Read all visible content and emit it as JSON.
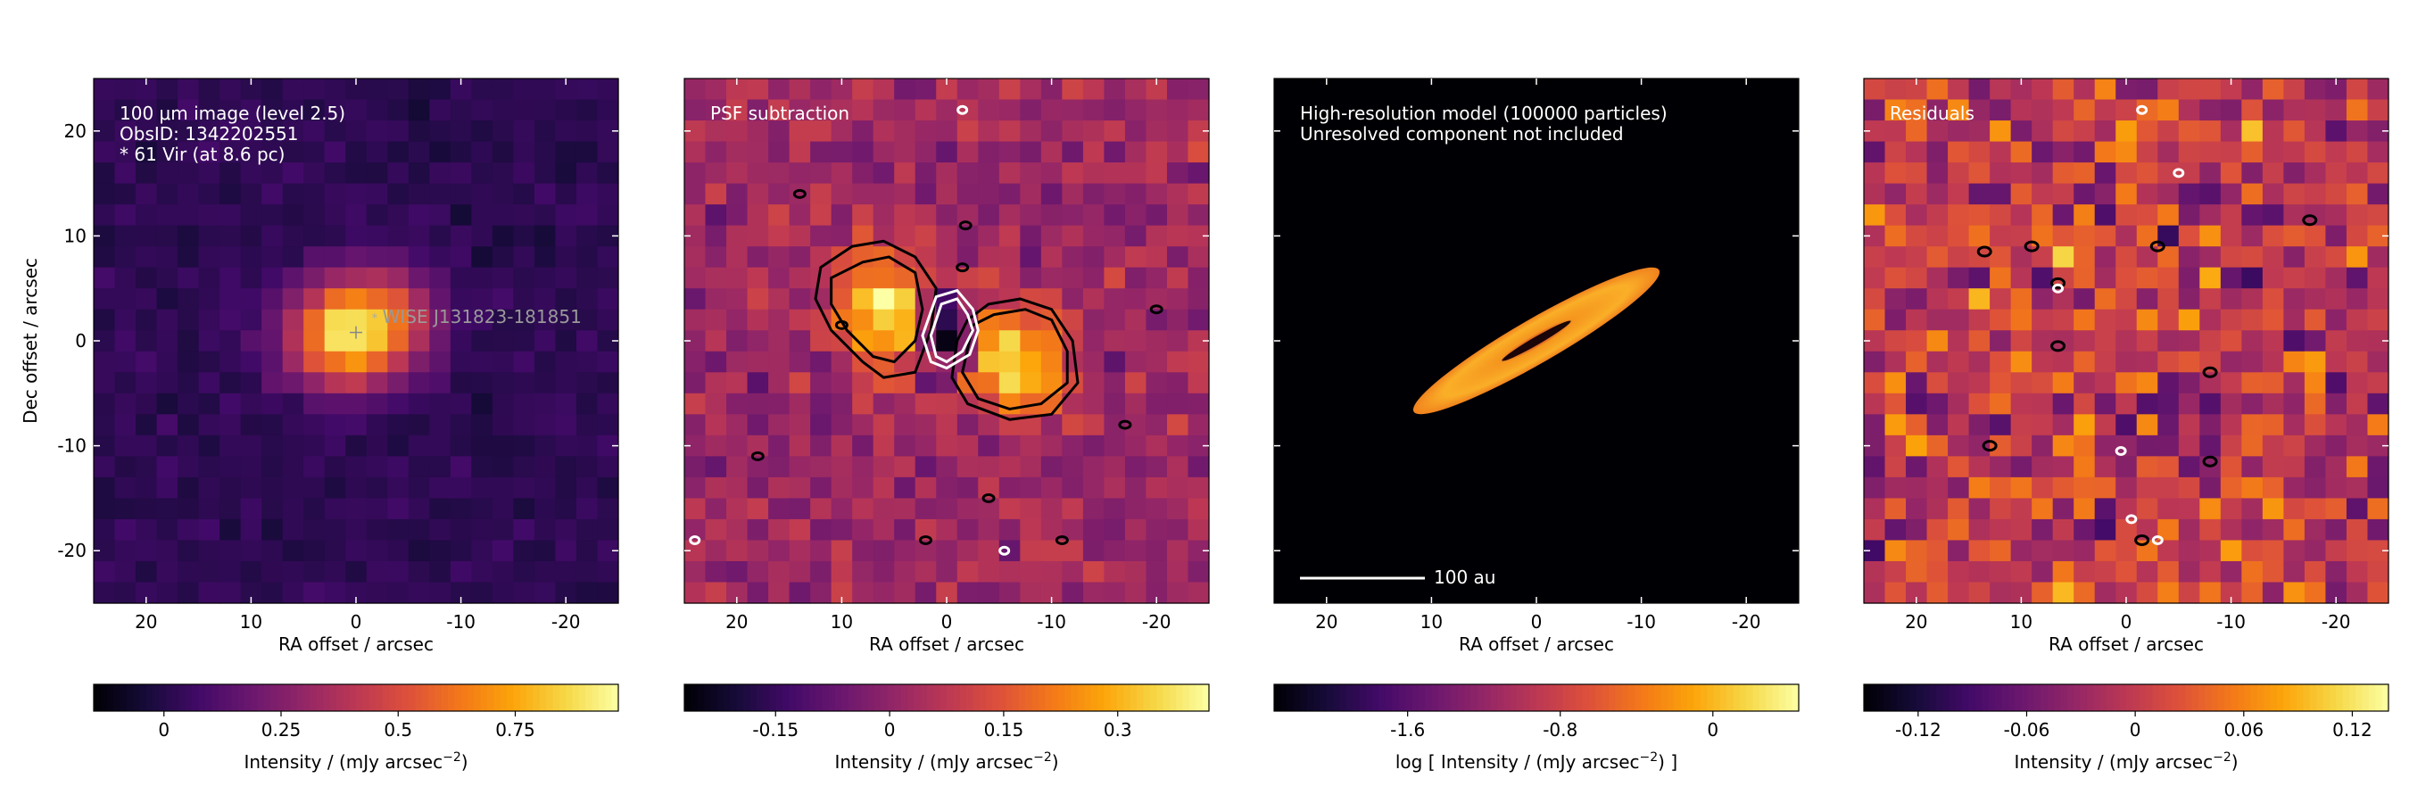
{
  "chart_data": [
    {
      "type": "heatmap",
      "panel": "observed image",
      "annotations": [
        "100 μm image (level 2.5)",
        "ObsID: 1342202551",
        "* 61 Vir (at 8.6 pc)"
      ],
      "source_label": "WISE J131823-181851",
      "xlabel": "RA offset / arcsec",
      "ylabel": "Dec offset / arcsec",
      "xlim": [
        25,
        -25
      ],
      "ylim": [
        -25,
        25
      ],
      "xticks": [
        20,
        10,
        0,
        -10,
        -20
      ],
      "yticks": [
        20,
        10,
        0,
        -10,
        -20
      ],
      "colorbar": {
        "label": "Intensity / (mJy arcsec",
        "label_sup": "−2",
        "label_end": ")",
        "range": [
          -0.15,
          0.97
        ],
        "ticks": [
          "0",
          "0.25",
          "0.5",
          "0.75"
        ],
        "tick_values": [
          0,
          0.25,
          0.5,
          0.75
        ]
      },
      "colormap": "inferno",
      "source": {
        "ra": 0,
        "dec": 1,
        "peak": 0.95,
        "width_ra": 4.5,
        "width_dec": 3.5,
        "pa_deg": -15
      }
    },
    {
      "type": "heatmap",
      "panel": "psf subtraction",
      "annotations": [
        "PSF subtraction"
      ],
      "xlabel": "RA offset / arcsec",
      "xlim": [
        25,
        -25
      ],
      "ylim": [
        -25,
        25
      ],
      "xticks": [
        20,
        10,
        0,
        -10,
        -20
      ],
      "colorbar": {
        "label": "Intensity / (mJy arcsec",
        "label_sup": "−2",
        "label_end": ")",
        "range": [
          -0.27,
          0.42
        ],
        "ticks": [
          "-0.15",
          "0",
          "0.15",
          "0.3"
        ],
        "tick_values": [
          -0.15,
          0,
          0.15,
          0.3
        ]
      },
      "colormap": "inferno",
      "lobes": [
        {
          "ra": 6,
          "dec": 3,
          "peak": 0.38,
          "width_ra": 2.8,
          "width_dec": 4.0
        },
        {
          "ra": -7,
          "dec": -2,
          "peak": 0.36,
          "width_ra": 3.2,
          "width_dec": 3.2
        },
        {
          "ra": 0,
          "dec": 1,
          "peak": -0.27,
          "width_ra": 1.6,
          "width_dec": 2.4
        }
      ]
    },
    {
      "type": "heatmap",
      "panel": "model",
      "annotations": [
        "High-resolution model (100000 particles)",
        "Unresolved component not included"
      ],
      "scalebar_label": "100 au",
      "xlabel": "RA offset / arcsec",
      "xlim": [
        25,
        -25
      ],
      "ylim": [
        -25,
        25
      ],
      "xticks": [
        20,
        10,
        0,
        -10,
        -20
      ],
      "colorbar": {
        "label": "log [ Intensity / (mJy arcsec",
        "label_sup": "−2",
        "label_end": ") ]",
        "range": [
          -2.3,
          0.45
        ],
        "ticks": [
          "-1.6",
          "-0.8",
          "0"
        ],
        "tick_values": [
          -1.6,
          -0.8,
          0
        ]
      },
      "colormap": "inferno",
      "disk": {
        "center_ra": 0,
        "center_dec": 0,
        "semi_major_arcsec": 13.5,
        "semi_minor_arcsec": 2.1,
        "pa_deg": -30
      }
    },
    {
      "type": "heatmap",
      "panel": "residuals",
      "annotations": [
        "Residuals"
      ],
      "xlabel": "RA offset / arcsec",
      "xlim": [
        25,
        -25
      ],
      "ylim": [
        -25,
        25
      ],
      "xticks": [
        20,
        10,
        0,
        -10,
        -20
      ],
      "colorbar": {
        "label": "Intensity / (mJy arcsec",
        "label_sup": "−2",
        "label_end": ")",
        "range": [
          -0.15,
          0.14
        ],
        "ticks": [
          "-0.12",
          "-0.06",
          "0",
          "0.06",
          "0.12"
        ],
        "tick_values": [
          -0.12,
          -0.06,
          0,
          0.06,
          0.12
        ]
      },
      "colormap": "inferno"
    }
  ]
}
